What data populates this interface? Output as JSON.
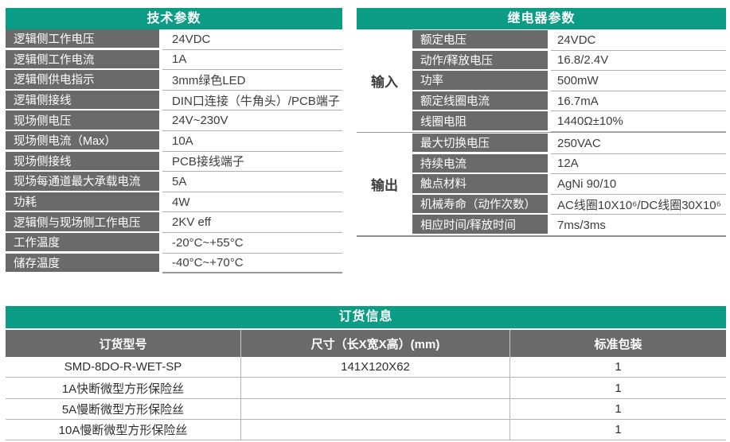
{
  "colors": {
    "teal_header": "#0a9c85",
    "label_cell_gray": "#6a6a6a",
    "value_text": "#3d3d3d",
    "border_light": "#b0b0b0",
    "border_dark": "#8f8f8f"
  },
  "tech_table": {
    "title": "技术参数",
    "rows": [
      {
        "label": "逻辑侧工作电压",
        "value": "24VDC"
      },
      {
        "label": "逻辑侧工作电流",
        "value": "1A"
      },
      {
        "label": "逻辑侧供电指示",
        "value": "3mm绿色LED"
      },
      {
        "label": "逻辑侧接线",
        "value": "DIN口连接（牛角头）/PCB端子"
      },
      {
        "label": "现场侧电压",
        "value": "24V~230V"
      },
      {
        "label": "现场侧电流（Max）",
        "value": "10A"
      },
      {
        "label": "现场侧接线",
        "value": "PCB接线端子"
      },
      {
        "label": "现场每通道最大承载电流",
        "value": "5A"
      },
      {
        "label": "功耗",
        "value": "4W"
      },
      {
        "label": "逻辑侧与现场侧工作电压",
        "value": "2KV eff"
      },
      {
        "label": "工作温度",
        "value": "-20°C~+55°C"
      },
      {
        "label": "储存温度",
        "value": "-40°C~+70°C"
      }
    ]
  },
  "relay_table": {
    "title": "继电器参数",
    "groups": [
      {
        "group": "输入",
        "rows": [
          {
            "label": "额定电压",
            "value": "24VDC"
          },
          {
            "label": "动作/释放电压",
            "value": "16.8/2.4V"
          },
          {
            "label": "功率",
            "value": "500mW"
          },
          {
            "label": "额定线圈电流",
            "value": "16.7mA"
          },
          {
            "label": "线圈电阻",
            "value": "1440Ω±10%"
          }
        ]
      },
      {
        "group": "输出",
        "rows": [
          {
            "label": "最大切换电压",
            "value": "250VAC"
          },
          {
            "label": "持续电流",
            "value": "12A"
          },
          {
            "label": "触点材料",
            "value": "AgNi 90/10"
          },
          {
            "label": "机械寿命（动作次数）",
            "value": "AC线圈10X10⁶/DC线圈30X10⁶"
          },
          {
            "label": "相应时间/释放时间",
            "value": "7ms/3ms"
          }
        ]
      }
    ]
  },
  "order_table": {
    "title": "订货信息",
    "columns": [
      "订货型号",
      "尺寸（长X宽X高）(mm)",
      "标准包装"
    ],
    "rows": [
      [
        "SMD-8DO-R-WET-SP",
        "141X120X62",
        "1"
      ],
      [
        "1A快断微型方形保险丝",
        "",
        "1"
      ],
      [
        "5A慢断微型方形保险丝",
        "",
        "1"
      ],
      [
        "10A慢断微型方形保险丝",
        "",
        "1"
      ]
    ]
  }
}
